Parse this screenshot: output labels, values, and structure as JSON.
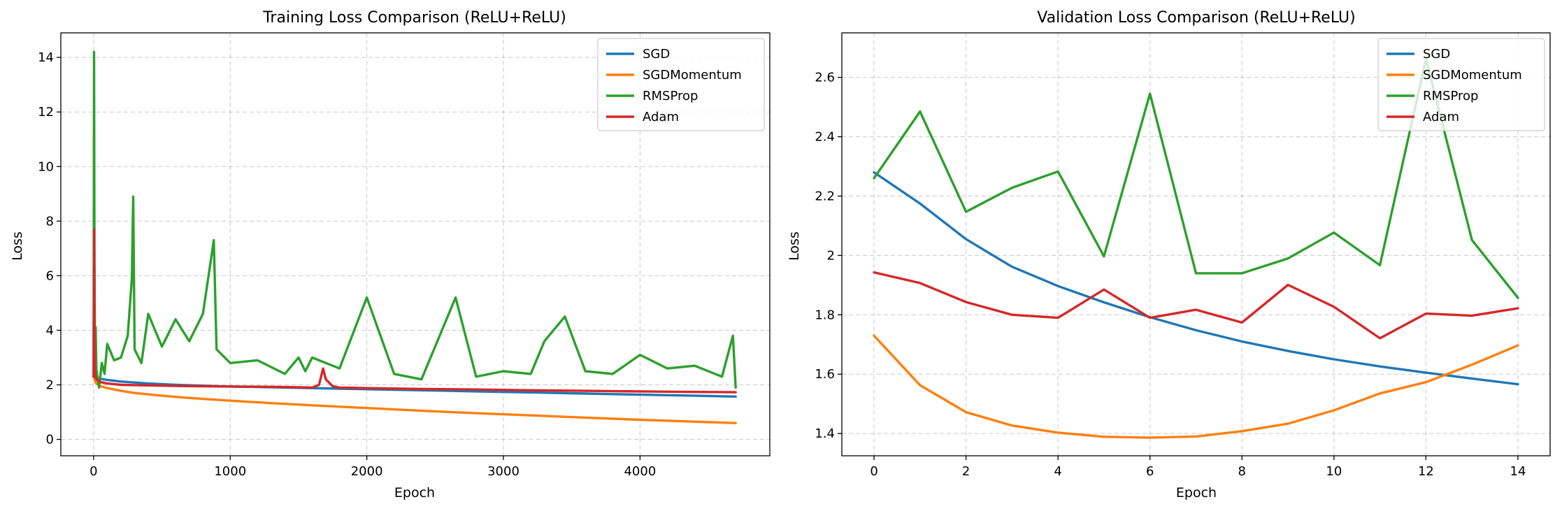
{
  "chart_data": [
    {
      "type": "line",
      "title": "Training Loss Comparison (ReLU+ReLU)",
      "xlabel": "Epoch",
      "ylabel": "Loss",
      "xlim": [
        -240,
        4950
      ],
      "ylim": [
        -0.6,
        14.9
      ],
      "xticks": [
        0,
        1000,
        2000,
        3000,
        4000
      ],
      "yticks": [
        0,
        2,
        4,
        6,
        8,
        10,
        12,
        14
      ],
      "grid": true,
      "legend": "top-right",
      "series": [
        {
          "name": "SGD",
          "color": "#1f77b4",
          "x": [
            0,
            2,
            5,
            10,
            20,
            50,
            100,
            200,
            400,
            600,
            800,
            1000,
            1200,
            1400,
            1600,
            1800,
            2000,
            2200,
            2400,
            2600,
            2800,
            3000,
            3200,
            3400,
            3600,
            3800,
            4000,
            4200,
            4400,
            4600,
            4700
          ],
          "y": [
            2.3,
            2.3,
            2.29,
            2.28,
            2.26,
            2.22,
            2.18,
            2.12,
            2.05,
            2.0,
            1.97,
            1.94,
            1.92,
            1.9,
            1.88,
            1.86,
            1.84,
            1.82,
            1.8,
            1.78,
            1.76,
            1.74,
            1.72,
            1.7,
            1.68,
            1.66,
            1.64,
            1.62,
            1.6,
            1.58,
            1.57
          ]
        },
        {
          "name": "SGDMomentum",
          "color": "#ff7f0e",
          "x": [
            0,
            5,
            10,
            20,
            50,
            100,
            200,
            300,
            500,
            700,
            1000,
            1300,
            1600,
            2000,
            2400,
            2800,
            3200,
            3600,
            4000,
            4400,
            4700
          ],
          "y": [
            2.3,
            2.25,
            2.15,
            2.05,
            1.95,
            1.88,
            1.78,
            1.7,
            1.6,
            1.52,
            1.42,
            1.33,
            1.25,
            1.15,
            1.05,
            0.96,
            0.88,
            0.8,
            0.72,
            0.65,
            0.6
          ]
        },
        {
          "name": "RMSProp",
          "color": "#2ca02c",
          "x": [
            0,
            3,
            6,
            10,
            15,
            20,
            30,
            40,
            60,
            80,
            100,
            150,
            200,
            250,
            280,
            290,
            300,
            350,
            400,
            500,
            600,
            700,
            800,
            880,
            900,
            1000,
            1200,
            1400,
            1500,
            1550,
            1600,
            1800,
            2000,
            2200,
            2400,
            2650,
            2800,
            3000,
            3200,
            3300,
            3450,
            3600,
            3800,
            4000,
            4200,
            4400,
            4600,
            4680,
            4700
          ],
          "y": [
            2.3,
            14.2,
            7.0,
            3.2,
            4.1,
            2.6,
            2.2,
            1.9,
            2.8,
            2.4,
            3.5,
            2.9,
            3.0,
            3.8,
            5.9,
            8.9,
            3.3,
            2.8,
            4.6,
            3.4,
            4.4,
            3.6,
            4.6,
            7.3,
            3.3,
            2.8,
            2.9,
            2.4,
            3.0,
            2.5,
            3.0,
            2.6,
            5.2,
            2.4,
            2.2,
            5.2,
            2.3,
            2.5,
            2.4,
            3.6,
            4.5,
            2.5,
            2.4,
            3.1,
            2.6,
            2.7,
            2.3,
            3.8,
            1.9
          ]
        },
        {
          "name": "Adam",
          "color": "#d62728",
          "x": [
            0,
            3,
            6,
            10,
            20,
            50,
            100,
            200,
            400,
            600,
            800,
            1000,
            1200,
            1400,
            1600,
            1650,
            1680,
            1700,
            1750,
            1800,
            2000,
            2400,
            2800,
            3200,
            3600,
            4000,
            4400,
            4700
          ],
          "y": [
            2.3,
            7.7,
            3.2,
            2.4,
            2.2,
            2.1,
            2.05,
            2.0,
            1.98,
            1.96,
            1.95,
            1.94,
            1.93,
            1.92,
            1.9,
            2.0,
            2.6,
            2.2,
            1.95,
            1.9,
            1.88,
            1.85,
            1.83,
            1.8,
            1.78,
            1.76,
            1.74,
            1.73
          ]
        }
      ]
    },
    {
      "type": "line",
      "title": "Validation Loss Comparison (ReLU+ReLU)",
      "xlabel": "Epoch",
      "ylabel": "Loss",
      "xlim": [
        -0.7,
        14.7
      ],
      "ylim": [
        1.325,
        2.75
      ],
      "xticks": [
        0,
        2,
        4,
        6,
        8,
        10,
        12,
        14
      ],
      "yticks": [
        1.4,
        1.6,
        1.8,
        2.0,
        2.2,
        2.4,
        2.6
      ],
      "grid": true,
      "legend": "top-right",
      "series": [
        {
          "name": "SGD",
          "color": "#1f77b4",
          "x": [
            0,
            1,
            2,
            3,
            4,
            5,
            6,
            7,
            8,
            9,
            10,
            11,
            12,
            13,
            14
          ],
          "y": [
            2.28,
            2.175,
            2.055,
            1.962,
            1.897,
            1.842,
            1.792,
            1.748,
            1.71,
            1.678,
            1.65,
            1.626,
            1.605,
            1.585,
            1.566
          ]
        },
        {
          "name": "SGDMomentum",
          "color": "#ff7f0e",
          "x": [
            0,
            1,
            2,
            3,
            4,
            5,
            6,
            7,
            8,
            9,
            10,
            11,
            12,
            13,
            14
          ],
          "y": [
            1.73,
            1.563,
            1.472,
            1.427,
            1.403,
            1.389,
            1.386,
            1.39,
            1.408,
            1.433,
            1.478,
            1.535,
            1.573,
            1.632,
            1.697
          ]
        },
        {
          "name": "RMSProp",
          "color": "#2ca02c",
          "x": [
            0,
            1,
            2,
            3,
            4,
            5,
            6,
            7,
            8,
            9,
            10,
            11,
            12,
            13,
            14
          ],
          "y": [
            2.26,
            2.485,
            2.147,
            2.228,
            2.283,
            1.997,
            2.545,
            1.94,
            1.94,
            1.99,
            2.077,
            1.967,
            2.662,
            2.052,
            1.857
          ]
        },
        {
          "name": "Adam",
          "color": "#d62728",
          "x": [
            0,
            1,
            2,
            3,
            4,
            5,
            6,
            7,
            8,
            9,
            10,
            11,
            12,
            13,
            14
          ],
          "y": [
            1.943,
            1.907,
            1.843,
            1.8,
            1.79,
            1.885,
            1.79,
            1.817,
            1.774,
            1.901,
            1.827,
            1.721,
            1.804,
            1.797,
            1.822
          ]
        }
      ]
    }
  ]
}
